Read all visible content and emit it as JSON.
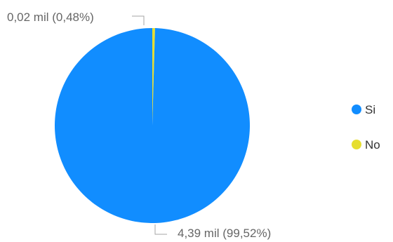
{
  "chart_data": {
    "type": "pie",
    "categories": [
      "Si",
      "No"
    ],
    "values": [
      4390,
      20
    ],
    "data_labels": [
      "4,39 mil (99,52%)",
      "0,02 mil (0,48%)"
    ],
    "colors": [
      "#118DFF",
      "#E6DE30"
    ],
    "legend": {
      "position": "right",
      "items": [
        "Si",
        "No"
      ]
    },
    "leader_line_color": "#A6A6A6"
  }
}
